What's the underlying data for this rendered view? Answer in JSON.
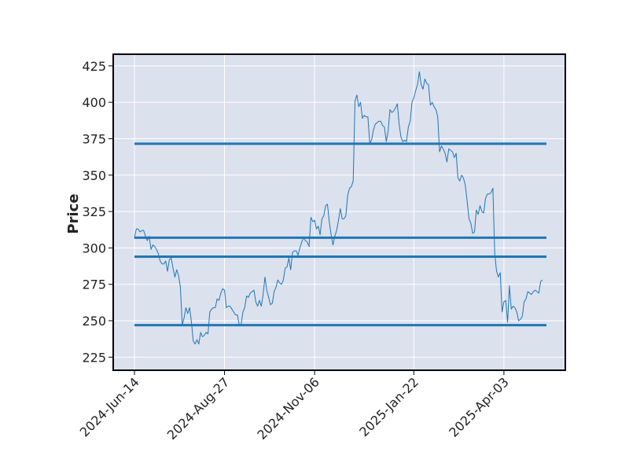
{
  "chart_data": {
    "type": "line",
    "title": "",
    "xlabel": "",
    "ylabel": "Price",
    "ylim": [
      216,
      433
    ],
    "grid": true,
    "colors": {
      "plot_background": "#dce1ee",
      "grid": "#ffffff",
      "price_line": "#1f77b4",
      "level_lines": "#1f77b4",
      "frame": "#000000"
    },
    "x_ticks": [
      "2024-Jun-14",
      "2024-Aug-27",
      "2024-Nov-06",
      "2025-Jan-22",
      "2025-Apr-03"
    ],
    "y_ticks": [
      225,
      250,
      275,
      300,
      325,
      350,
      375,
      400,
      425
    ],
    "horizontal_levels": [
      371.5,
      307,
      294,
      247
    ],
    "series": [
      {
        "values": [
          307,
          313,
          313,
          311,
          312,
          312,
          308,
          305,
          308,
          299,
          302,
          301,
          299,
          296,
          291,
          289,
          289,
          291,
          284,
          292,
          293,
          286,
          280,
          285,
          281,
          273,
          247,
          252,
          259,
          255,
          259,
          249,
          236,
          234,
          237,
          234,
          242,
          239,
          240,
          242,
          241,
          256,
          258,
          259,
          259,
          265,
          264,
          269,
          272,
          271,
          259,
          260,
          260,
          258,
          256,
          254,
          254,
          247,
          247,
          256,
          259,
          267,
          266,
          269,
          270,
          271,
          263,
          260,
          264,
          260,
          268,
          280,
          271,
          266,
          261,
          262,
          270,
          273,
          278,
          276,
          275,
          278,
          286,
          287,
          293,
          285,
          297,
          298,
          298,
          295,
          300,
          304,
          307,
          305,
          304,
          301,
          321,
          318,
          319,
          313,
          315,
          309,
          320,
          322,
          329,
          330,
          318,
          309,
          302,
          308,
          312,
          319,
          327,
          320,
          320,
          322,
          336,
          341,
          342,
          346,
          401,
          405,
          397,
          400,
          389,
          391,
          390,
          390,
          372,
          374,
          381,
          385,
          386,
          387,
          387,
          384,
          383,
          373,
          380,
          395,
          393,
          394,
          396,
          399,
          385,
          376,
          373,
          374,
          373,
          383,
          387,
          400,
          403,
          408,
          412,
          421,
          412,
          409,
          416,
          413,
          412,
          398,
          400,
          397,
          395,
          390,
          366,
          370,
          368,
          365,
          359,
          368,
          367,
          366,
          362,
          365,
          348,
          346,
          350,
          348,
          343,
          332,
          320,
          317,
          310,
          311,
          326,
          323,
          329,
          325,
          324,
          334,
          337,
          337,
          338,
          341,
          296,
          284,
          280,
          283,
          256,
          263,
          264,
          249,
          274,
          258,
          260,
          259,
          256,
          250,
          251,
          253,
          263,
          265,
          270,
          269,
          268,
          270,
          271,
          270,
          269,
          277,
          278
        ]
      }
    ]
  }
}
